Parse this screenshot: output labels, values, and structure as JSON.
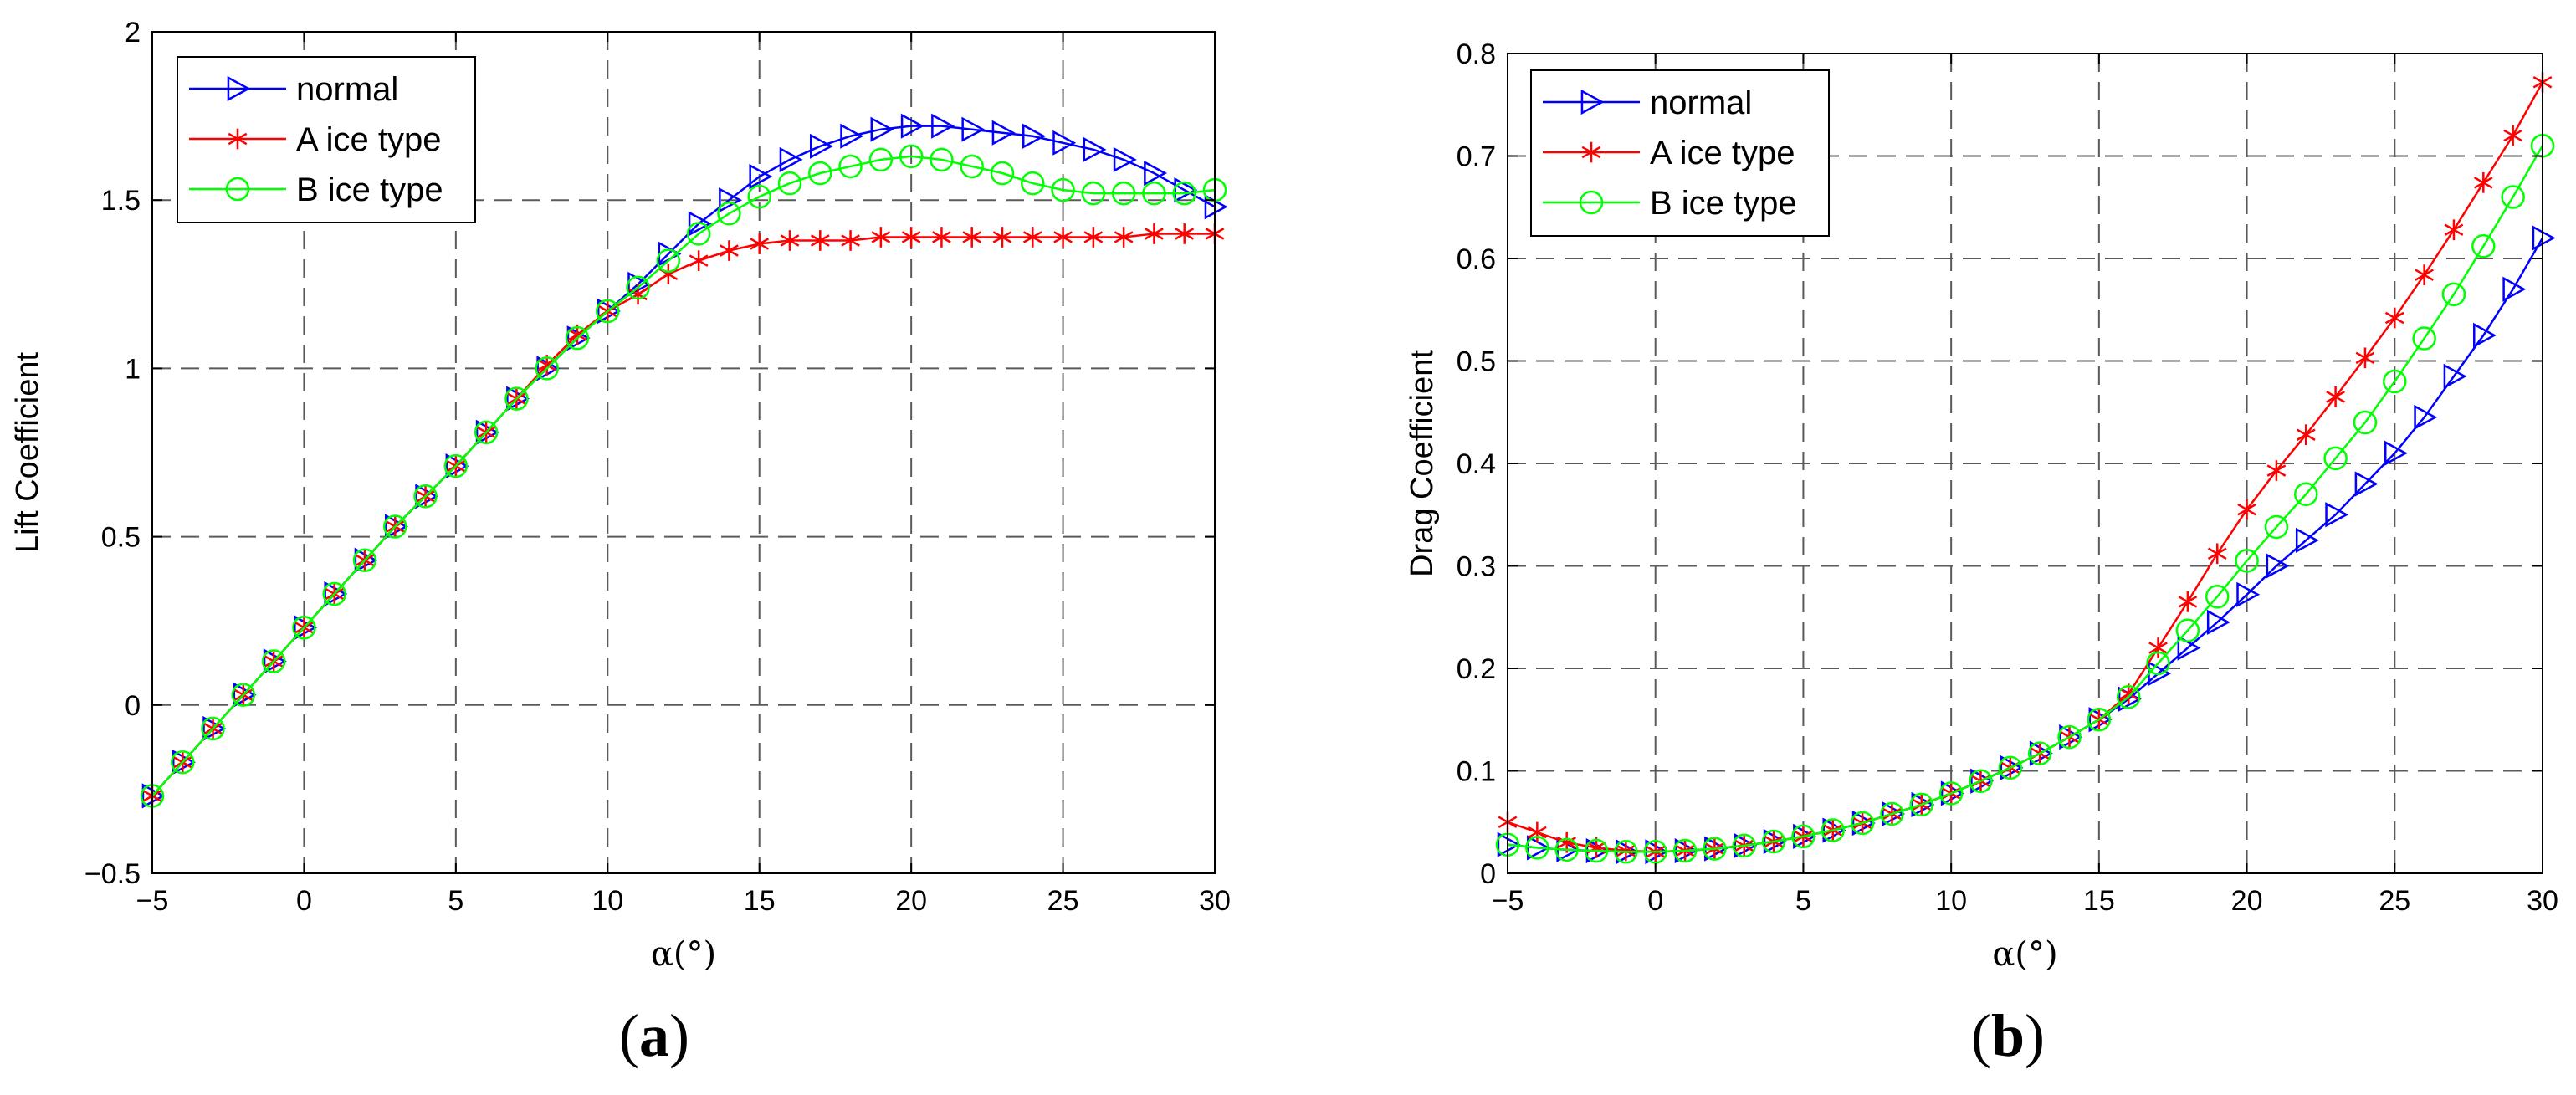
{
  "chart_data": [
    {
      "type": "line",
      "panel": "a",
      "caption_open": "(",
      "caption_letter": "a",
      "caption_close": ")",
      "ylabel": "Lift Coefficient",
      "xlabel": "α(°)",
      "xlim": [
        -5,
        30
      ],
      "ylim": [
        -0.5,
        2
      ],
      "xticks": [
        -5,
        0,
        5,
        10,
        15,
        20,
        25,
        30
      ],
      "xtick_labels": [
        "−5",
        "0",
        "5",
        "10",
        "15",
        "20",
        "25",
        "30"
      ],
      "yticks": [
        -0.5,
        0,
        0.5,
        1,
        1.5,
        2
      ],
      "ytick_labels": [
        "−0.5",
        "0",
        "0.5",
        "1",
        "1.5",
        "2"
      ],
      "grid": true,
      "legend_position": "top-left",
      "x": [
        -5,
        -4,
        -3,
        -2,
        -1,
        0,
        1,
        2,
        3,
        4,
        5,
        6,
        7,
        8,
        9,
        10,
        11,
        12,
        13,
        14,
        15,
        16,
        17,
        18,
        19,
        20,
        21,
        22,
        23,
        24,
        25,
        26,
        27,
        28,
        29,
        30
      ],
      "series": [
        {
          "name": "normal",
          "color": "#0000ff",
          "marker": "triangle-right",
          "values": [
            -0.27,
            -0.17,
            -0.07,
            0.03,
            0.13,
            0.23,
            0.33,
            0.43,
            0.53,
            0.62,
            0.71,
            0.81,
            0.91,
            1.0,
            1.09,
            1.17,
            1.25,
            1.34,
            1.43,
            1.5,
            1.57,
            1.62,
            1.66,
            1.69,
            1.71,
            1.72,
            1.72,
            1.71,
            1.7,
            1.69,
            1.67,
            1.65,
            1.62,
            1.58,
            1.53,
            1.48
          ]
        },
        {
          "name": "A ice type",
          "color": "#ff0000",
          "marker": "asterisk",
          "values": [
            -0.27,
            -0.17,
            -0.07,
            0.03,
            0.13,
            0.23,
            0.33,
            0.43,
            0.53,
            0.62,
            0.71,
            0.81,
            0.91,
            1.01,
            1.1,
            1.17,
            1.22,
            1.28,
            1.32,
            1.35,
            1.37,
            1.38,
            1.38,
            1.38,
            1.39,
            1.39,
            1.39,
            1.39,
            1.39,
            1.39,
            1.39,
            1.39,
            1.39,
            1.4,
            1.4,
            1.4
          ]
        },
        {
          "name": "B ice type",
          "color": "#00ff00",
          "marker": "circle",
          "values": [
            -0.27,
            -0.17,
            -0.07,
            0.03,
            0.13,
            0.23,
            0.33,
            0.43,
            0.53,
            0.62,
            0.71,
            0.81,
            0.91,
            1.0,
            1.09,
            1.17,
            1.24,
            1.32,
            1.4,
            1.46,
            1.51,
            1.55,
            1.58,
            1.6,
            1.62,
            1.63,
            1.62,
            1.6,
            1.58,
            1.55,
            1.53,
            1.52,
            1.52,
            1.52,
            1.52,
            1.53
          ]
        }
      ]
    },
    {
      "type": "line",
      "panel": "b",
      "caption_open": "(",
      "caption_letter": "b",
      "caption_close": ")",
      "ylabel": "Drag Coefficient",
      "xlabel": "α(°)",
      "xlim": [
        -5,
        30
      ],
      "ylim": [
        0,
        0.8
      ],
      "xticks": [
        -5,
        0,
        5,
        10,
        15,
        20,
        25,
        30
      ],
      "xtick_labels": [
        "−5",
        "0",
        "5",
        "10",
        "15",
        "20",
        "25",
        "30"
      ],
      "yticks": [
        0,
        0.1,
        0.2,
        0.3,
        0.4,
        0.5,
        0.6,
        0.7,
        0.8
      ],
      "ytick_labels": [
        "0",
        "0.1",
        "0.2",
        "0.3",
        "0.4",
        "0.5",
        "0.6",
        "0.7",
        "0.8"
      ],
      "grid": true,
      "legend_position": "top-left",
      "x": [
        -5,
        -4,
        -3,
        -2,
        -1,
        0,
        1,
        2,
        3,
        4,
        5,
        6,
        7,
        8,
        9,
        10,
        11,
        12,
        13,
        14,
        15,
        16,
        17,
        18,
        19,
        20,
        21,
        22,
        23,
        24,
        25,
        26,
        27,
        28,
        29,
        30
      ],
      "series": [
        {
          "name": "normal",
          "color": "#0000ff",
          "marker": "triangle-right",
          "values": [
            0.028,
            0.025,
            0.023,
            0.022,
            0.021,
            0.021,
            0.022,
            0.024,
            0.027,
            0.031,
            0.036,
            0.042,
            0.049,
            0.058,
            0.067,
            0.078,
            0.09,
            0.103,
            0.117,
            0.133,
            0.15,
            0.17,
            0.195,
            0.22,
            0.245,
            0.272,
            0.3,
            0.325,
            0.35,
            0.38,
            0.41,
            0.445,
            0.485,
            0.525,
            0.57,
            0.62
          ]
        },
        {
          "name": "A ice type",
          "color": "#ff0000",
          "marker": "asterisk",
          "values": [
            0.05,
            0.04,
            0.03,
            0.025,
            0.022,
            0.021,
            0.022,
            0.024,
            0.027,
            0.031,
            0.036,
            0.042,
            0.049,
            0.058,
            0.067,
            0.078,
            0.09,
            0.103,
            0.117,
            0.133,
            0.15,
            0.175,
            0.22,
            0.265,
            0.312,
            0.355,
            0.393,
            0.428,
            0.465,
            0.503,
            0.542,
            0.584,
            0.628,
            0.674,
            0.72,
            0.772
          ]
        },
        {
          "name": "B ice type",
          "color": "#00ff00",
          "marker": "circle",
          "values": [
            0.028,
            0.025,
            0.023,
            0.022,
            0.021,
            0.021,
            0.022,
            0.024,
            0.027,
            0.031,
            0.036,
            0.042,
            0.049,
            0.058,
            0.067,
            0.078,
            0.09,
            0.103,
            0.117,
            0.133,
            0.15,
            0.172,
            0.205,
            0.237,
            0.27,
            0.305,
            0.338,
            0.37,
            0.405,
            0.44,
            0.48,
            0.522,
            0.565,
            0.612,
            0.66,
            0.71
          ]
        }
      ]
    }
  ]
}
